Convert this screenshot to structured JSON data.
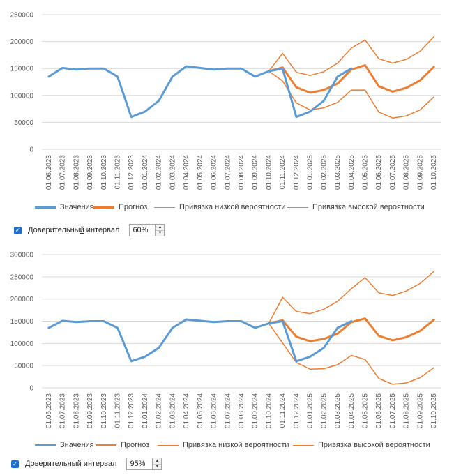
{
  "colors": {
    "values": "#5b9bd5",
    "forecast": "#ed7d31",
    "bounds": "#ed7d31",
    "grid": "#d9d9d9",
    "checkbox": "#1e6fd0"
  },
  "categories": [
    "01.06.2023",
    "01.07.2023",
    "01.08.2023",
    "01.09.2023",
    "01.10.2023",
    "01.11.2023",
    "01.12.2023",
    "01.01.2024",
    "01.02.2024",
    "01.03.2024",
    "01.04.2024",
    "01.05.2024",
    "01.06.2024",
    "01.07.2024",
    "01.08.2024",
    "01.09.2024",
    "01.10.2024",
    "01.11.2024",
    "01.12.2024",
    "01.01.2025",
    "01.02.2025",
    "01.03.2025",
    "01.04.2025",
    "01.05.2025",
    "01.06.2025",
    "01.07.2025",
    "01.08.2025",
    "01.09.2025",
    "01.10.2025"
  ],
  "legend": {
    "values": "Значения",
    "forecast": "Прогноз",
    "low": "Привязка низкой вероятности",
    "high": "Привязка высокой вероятности"
  },
  "chart_data": [
    {
      "type": "line",
      "ylim": [
        0,
        250000
      ],
      "yticks": [
        0,
        50000,
        100000,
        150000,
        200000,
        250000
      ],
      "ytick_labels": [
        "0",
        "50000",
        "100000",
        "150000",
        "200000",
        "250000"
      ],
      "grid": true,
      "legend_position": "bottom",
      "series": [
        {
          "name": "Значения",
          "values": [
            135000,
            151000,
            148000,
            150000,
            150000,
            135000,
            60000,
            70000,
            90000,
            135000,
            154000,
            151000,
            148000,
            150000,
            150000,
            135000,
            145000,
            150000,
            60000,
            70000,
            90000,
            135000,
            150000,
            null,
            null,
            null,
            null,
            null,
            null
          ]
        },
        {
          "name": "Прогноз",
          "values": [
            null,
            null,
            null,
            null,
            null,
            null,
            null,
            null,
            null,
            null,
            null,
            null,
            null,
            null,
            null,
            null,
            145000,
            152000,
            115000,
            105000,
            110000,
            122000,
            148000,
            156000,
            117000,
            107000,
            114000,
            128000,
            153000
          ]
        },
        {
          "name": "Привязка низкой вероятности",
          "values": [
            null,
            null,
            null,
            null,
            null,
            null,
            null,
            null,
            null,
            null,
            null,
            null,
            null,
            null,
            null,
            null,
            145000,
            127000,
            86000,
            73000,
            77000,
            87000,
            110000,
            110000,
            69000,
            58000,
            62000,
            73000,
            97000
          ]
        },
        {
          "name": "Привязка высокой вероятности",
          "values": [
            null,
            null,
            null,
            null,
            null,
            null,
            null,
            null,
            null,
            null,
            null,
            null,
            null,
            null,
            null,
            null,
            145000,
            178000,
            143000,
            137000,
            144000,
            160000,
            188000,
            203000,
            168000,
            160000,
            167000,
            182000,
            209000
          ]
        }
      ]
    },
    {
      "type": "line",
      "ylim": [
        0,
        300000
      ],
      "yticks": [
        0,
        50000,
        100000,
        150000,
        200000,
        250000,
        300000
      ],
      "ytick_labels": [
        "0",
        "50000",
        "100000",
        "150000",
        "200000",
        "250000",
        "300000"
      ],
      "grid": true,
      "legend_position": "bottom",
      "series": [
        {
          "name": "Значения",
          "values": [
            135000,
            151000,
            148000,
            150000,
            150000,
            135000,
            60000,
            70000,
            90000,
            135000,
            154000,
            151000,
            148000,
            150000,
            150000,
            135000,
            145000,
            150000,
            60000,
            70000,
            90000,
            135000,
            150000,
            null,
            null,
            null,
            null,
            null,
            null
          ]
        },
        {
          "name": "Прогноз",
          "values": [
            null,
            null,
            null,
            null,
            null,
            null,
            null,
            null,
            null,
            null,
            null,
            null,
            null,
            null,
            null,
            null,
            145000,
            152000,
            115000,
            105000,
            110000,
            122000,
            148000,
            156000,
            117000,
            107000,
            114000,
            128000,
            153000
          ]
        },
        {
          "name": "Привязка низкой вероятности",
          "values": [
            null,
            null,
            null,
            null,
            null,
            null,
            null,
            null,
            null,
            null,
            null,
            null,
            null,
            null,
            null,
            null,
            145000,
            101000,
            57000,
            42000,
            43000,
            52000,
            73000,
            64000,
            21000,
            8000,
            11000,
            23000,
            45000
          ]
        },
        {
          "name": "Привязка высокой вероятности",
          "values": [
            null,
            null,
            null,
            null,
            null,
            null,
            null,
            null,
            null,
            null,
            null,
            null,
            null,
            null,
            null,
            null,
            145000,
            204000,
            172000,
            167000,
            177000,
            195000,
            223000,
            248000,
            214000,
            208000,
            218000,
            235000,
            262000
          ]
        }
      ]
    }
  ],
  "controls": [
    {
      "checkbox_checked": true,
      "label_before": "Доверительны",
      "label_under": "й",
      "label_after": " интервал",
      "value": "60%"
    },
    {
      "checkbox_checked": true,
      "label_before": "Доверительны",
      "label_under": "й",
      "label_after": " интервал",
      "value": "95%"
    }
  ]
}
